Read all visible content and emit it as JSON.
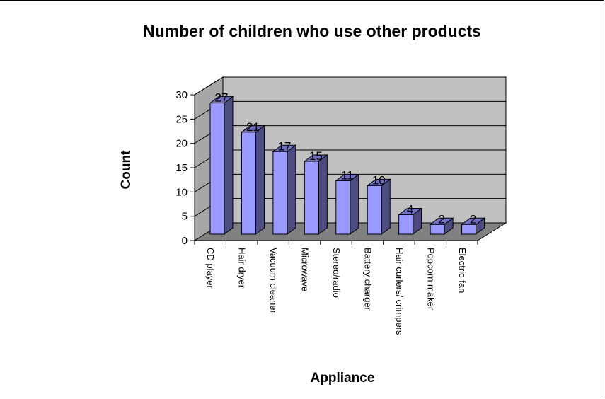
{
  "chart_data": {
    "type": "bar",
    "title": "Number of children who use other products",
    "xlabel": "Appliance",
    "ylabel": "Count",
    "categories": [
      "CD player",
      "Hair  dryer",
      "Vacuum cleaner",
      "Microwave",
      "Stereo/radio",
      "Battery charger",
      "Hair curlers/ crimpers",
      "Popcorn maker",
      "Electric fan"
    ],
    "values": [
      27,
      21,
      17,
      15,
      11,
      10,
      4,
      2,
      2
    ],
    "ylim": [
      0,
      30
    ],
    "yticks": [
      0,
      5,
      10,
      15,
      20,
      25,
      30
    ],
    "grid": true,
    "legend": "none",
    "data_labels": true,
    "colors": {
      "bar_front": "#9999ff",
      "bar_side": "#4c4c80",
      "bar_top": "#6f6fbd",
      "back_wall": "#c0c0c0",
      "floor": "#808080",
      "side_wall": "#a6a6a6"
    }
  }
}
